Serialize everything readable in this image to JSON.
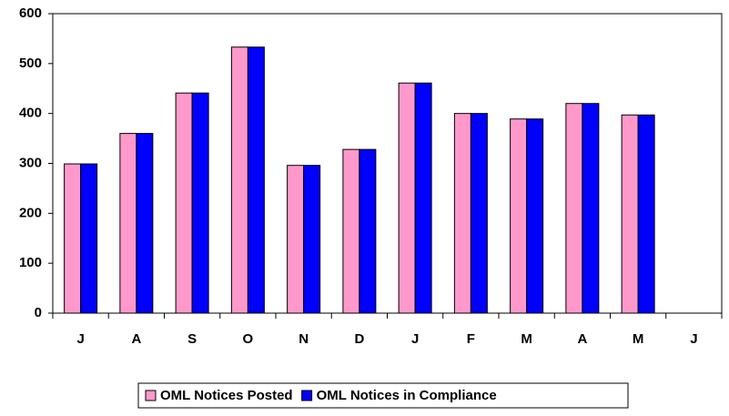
{
  "chart_data": {
    "type": "bar",
    "categories": [
      "J",
      "A",
      "S",
      "O",
      "N",
      "D",
      "J",
      "F",
      "M",
      "A",
      "M",
      "J"
    ],
    "series": [
      {
        "name": "OML Notices Posted",
        "color": "#ff99cc",
        "values": [
          299,
          360,
          441,
          533,
          296,
          328,
          461,
          400,
          389,
          420,
          397,
          null
        ]
      },
      {
        "name": "OML Notices in Compliance",
        "color": "#0000ff",
        "values": [
          299,
          360,
          441,
          533,
          296,
          328,
          461,
          400,
          389,
          420,
          397,
          null
        ]
      }
    ],
    "ylim": [
      0,
      600
    ],
    "yticks": [
      0,
      100,
      200,
      300,
      400,
      500,
      600
    ],
    "grid": false,
    "legend": "bottom"
  }
}
